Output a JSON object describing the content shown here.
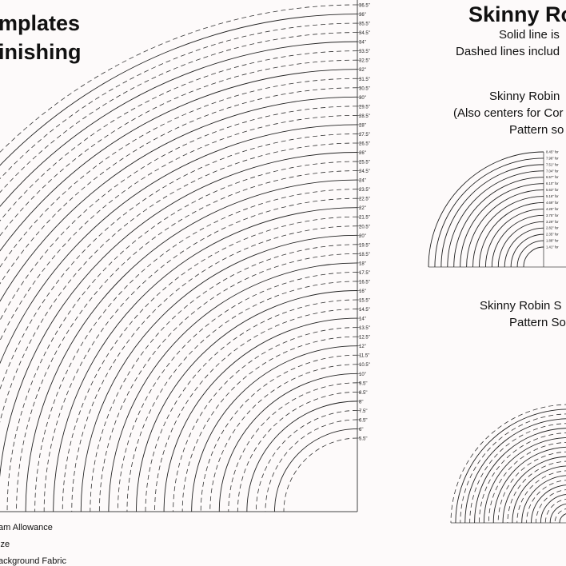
{
  "left_panel": {
    "title_line1": "mplates",
    "title_line2": "inishing",
    "size_labels": [
      "36.5\"",
      "36\"",
      "35.5\"",
      "34.5\"",
      "34\"",
      "33.5\"",
      "32.5\"",
      "32\"",
      "31.5\"",
      "30.5\"",
      "30\"",
      "29.5\"",
      "28.5\"",
      "28\"",
      "27.5\"",
      "26.5\"",
      "26\"",
      "25.5\"",
      "24.5\"",
      "24\"",
      "23.5\"",
      "22.5\"",
      "22\"",
      "21.5\"",
      "20.5\"",
      "20\"",
      "19.5\"",
      "18.5\"",
      "18\"",
      "17.5\"",
      "16.5\"",
      "16\"",
      "15.5\"",
      "14.5\"",
      "14\"",
      "13.5\"",
      "12.5\"",
      "12\"",
      "11.5\"",
      "10.5\"",
      "10\"",
      "9.5\"",
      "8.5\"",
      "8\"",
      "7.5\"",
      "6.5\"",
      "6\"",
      "5.5\""
    ],
    "legend": [
      "am Allowance",
      "ize",
      "ackground Fabric"
    ]
  },
  "right_panel": {
    "title": "Skinny Ro",
    "subtitle_line1": "Solid line is",
    "subtitle_line2": "Dashed lines includ",
    "section1": {
      "line1": "Skinny Robin",
      "line2": "(Also centers for Cor",
      "line3": "Pattern so",
      "labels": [
        "8.45\" for",
        "7.98\" for",
        "7.51\" for",
        "7.04\" for",
        "6.57\" for",
        "6.10\" for",
        "5.63\" for",
        "5.16\" for",
        "4.69\" for",
        "4.25\" for",
        "3.75\" for",
        "3.29\" for",
        "2.82\" for",
        "2.35\" for",
        "1.88\" for",
        "1.41\" for"
      ]
    },
    "section2": {
      "line1": "Skinny Robin S",
      "line2": "Pattern So"
    }
  }
}
